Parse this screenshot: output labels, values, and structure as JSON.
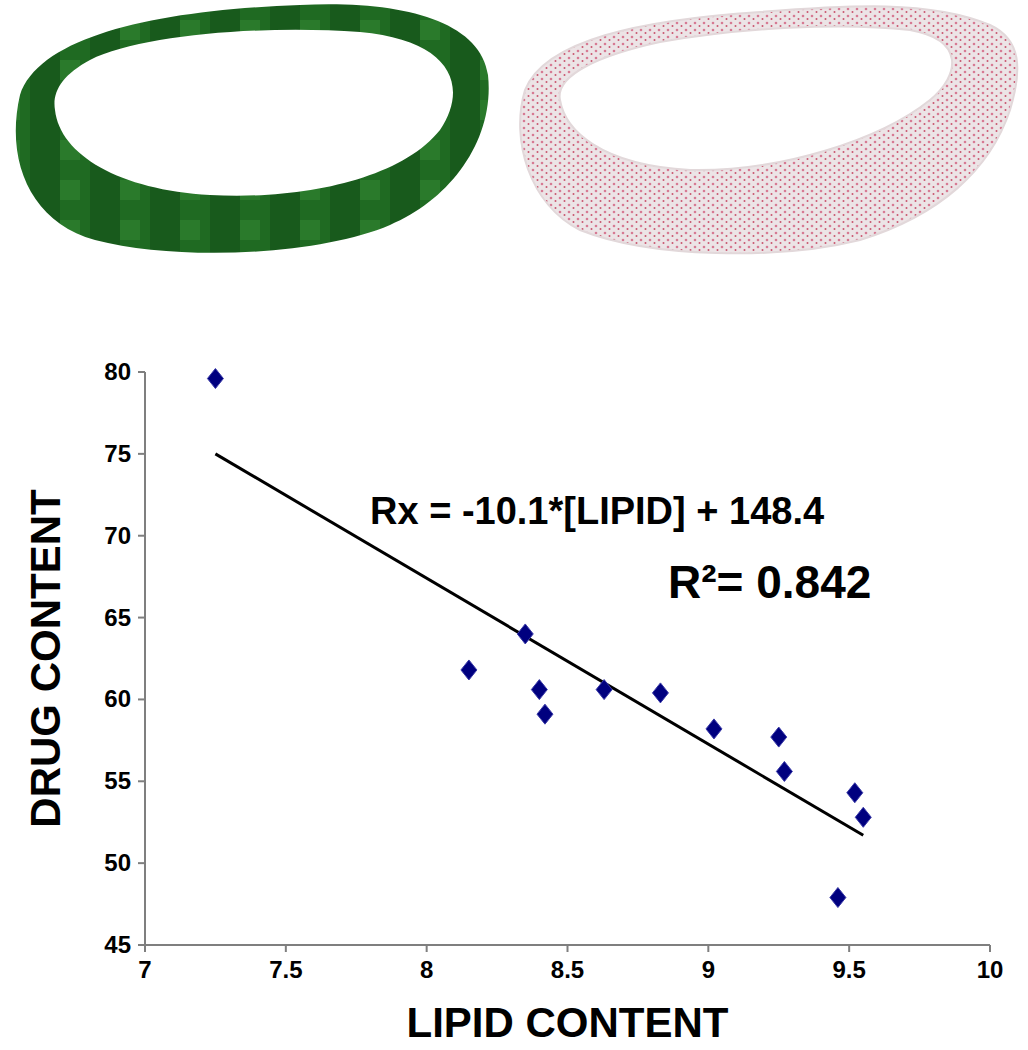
{
  "chart_data": {
    "type": "scatter",
    "x_label": "LIPID CONTENT",
    "y_label": "DRUG CONTENT",
    "annotations": [
      "Rx = -10.1*[LIPID] + 148.4",
      "R²= 0.842"
    ],
    "xlim": [
      7,
      10
    ],
    "xticks": [
      7,
      7.5,
      8,
      8.5,
      9,
      9.5,
      10
    ],
    "ylim": [
      45,
      80
    ],
    "yticks": [
      45,
      50,
      55,
      60,
      65,
      70,
      75,
      80
    ],
    "grid": false,
    "series": [
      {
        "type": "scatter",
        "color": "#00007f",
        "marker": "diamond",
        "x": [
          7.25,
          8.15,
          8.35,
          8.4,
          8.42,
          8.63,
          8.83,
          9.02,
          9.25,
          9.27,
          9.46,
          9.52,
          9.55
        ],
        "values": [
          79.6,
          61.8,
          64.0,
          60.6,
          59.1,
          60.6,
          60.4,
          58.2,
          57.7,
          55.6,
          47.9,
          54.3,
          52.8
        ]
      },
      {
        "type": "line",
        "color": "#000000",
        "line_style": "solid",
        "x": [
          7.25,
          9.55
        ],
        "values": [
          75.0,
          51.7
        ]
      }
    ]
  }
}
